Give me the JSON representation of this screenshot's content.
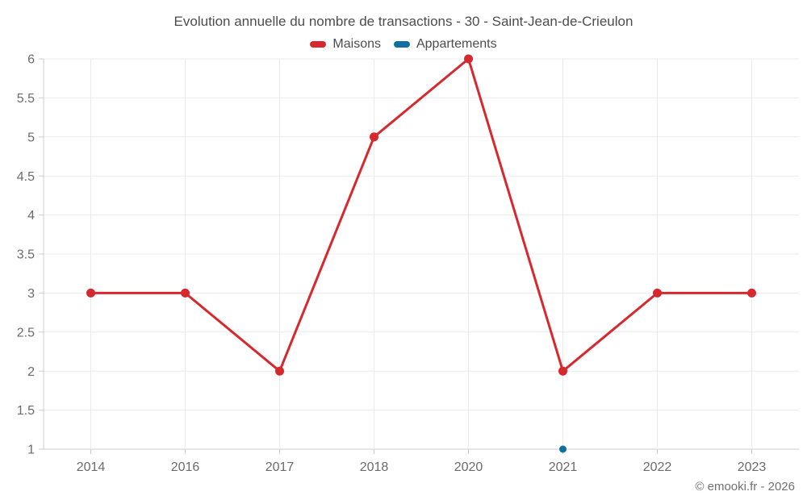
{
  "title": "Evolution annuelle du nombre de transactions - 30 - Saint-Jean-de-Crieulon",
  "footer": "© emooki.fr - 2026",
  "colors": {
    "maisons": "#d7282e",
    "appartements": "#0f6fa0",
    "gridline": "#ebebeb",
    "axis_line": "#cccccc",
    "tick_label": "#6b6b6b",
    "title_text": "#4d4d4d"
  },
  "chart_data": {
    "type": "line",
    "title": "Evolution annuelle du nombre de transactions - 30 - Saint-Jean-de-Crieulon",
    "categories": [
      "2014",
      "2016",
      "2017",
      "2018",
      "2020",
      "2021",
      "2022",
      "2023"
    ],
    "series": [
      {
        "name": "Maisons",
        "color": "#d7282e",
        "values": [
          3,
          3,
          2,
          5,
          6,
          2,
          3,
          3
        ]
      },
      {
        "name": "Appartements",
        "color": "#0f6fa0",
        "values": [
          null,
          null,
          null,
          null,
          null,
          1,
          null,
          null
        ]
      }
    ],
    "xlabel": "",
    "ylabel": "",
    "ylim": [
      1,
      6
    ],
    "ytick_step": 0.5,
    "grid": true,
    "legend_position": "top"
  }
}
